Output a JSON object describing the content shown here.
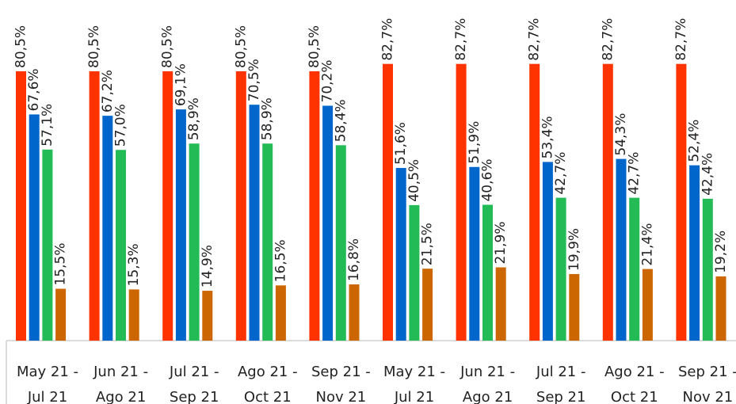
{
  "chart_data": {
    "type": "bar",
    "categories": [
      "May 21 - Jul 21",
      "Jun 21 - Ago 21",
      "Jul 21 - Sep 21",
      "Ago 21 - Oct 21",
      "Sep 21 - Nov 21",
      "May 21 - Jul 21",
      "Jun 21 - Ago 21",
      "Jul 21 - Sep 21",
      "Ago 21 - Oct 21",
      "Sep 21 - Nov 21"
    ],
    "ylim": [
      0,
      100
    ],
    "series": [
      {
        "color": "#ff3300",
        "values": [
          80.5,
          80.5,
          80.5,
          80.5,
          80.5,
          82.7,
          82.7,
          82.7,
          82.7,
          82.7
        ],
        "value_labels": [
          "80,5%",
          "80,5%",
          "80,5%",
          "80,5%",
          "80,5%",
          "82,7%",
          "82,7%",
          "82,7%",
          "82,7%",
          "82,7%"
        ]
      },
      {
        "color": "#0066cc",
        "values": [
          67.6,
          67.2,
          69.1,
          70.5,
          70.2,
          51.6,
          51.9,
          53.4,
          54.3,
          52.4
        ],
        "value_labels": [
          "67,6%",
          "67,2%",
          "69,1%",
          "70,5%",
          "70,2%",
          "51,6%",
          "51,9%",
          "53,4%",
          "54,3%",
          "52,4%"
        ]
      },
      {
        "color": "#22bb55",
        "values": [
          57.1,
          57.0,
          58.9,
          58.9,
          58.4,
          40.5,
          40.6,
          42.7,
          42.7,
          42.4
        ],
        "value_labels": [
          "57,1%",
          "57,0%",
          "58,9%",
          "58,9%",
          "58,4%",
          "40,5%",
          "40,6%",
          "42,7%",
          "42,7%",
          "42,4%"
        ]
      },
      {
        "color": "#cc6600",
        "values": [
          15.5,
          15.3,
          14.9,
          16.5,
          16.8,
          21.5,
          21.9,
          19.9,
          21.4,
          19.2
        ],
        "value_labels": [
          "15,5%",
          "15,3%",
          "14,9%",
          "16,5%",
          "16,8%",
          "21,5%",
          "21,9%",
          "19,9%",
          "21,4%",
          "19,2%"
        ]
      }
    ]
  }
}
